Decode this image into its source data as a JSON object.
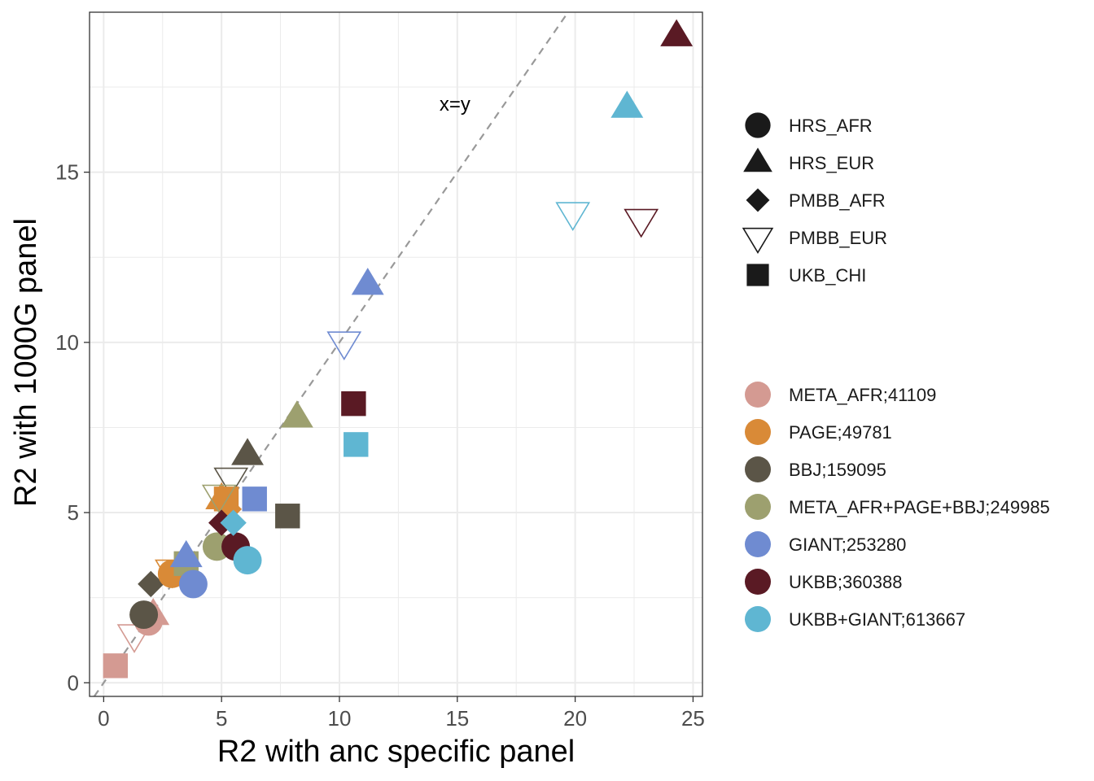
{
  "chart_data": {
    "type": "scatter",
    "title": "",
    "xlabel": "R2 with anc specific panel",
    "ylabel": "R2 with 1000G panel",
    "xlim": [
      -0.6,
      25.4
    ],
    "ylim": [
      -0.4,
      19.7
    ],
    "x_ticks": [
      0,
      5,
      10,
      15,
      20,
      25
    ],
    "y_ticks": [
      0,
      5,
      10,
      15
    ],
    "x_tick_labels": [
      "0",
      "5",
      "10",
      "15",
      "20",
      "25"
    ],
    "y_tick_labels": [
      "0",
      "5",
      "10",
      "15"
    ],
    "grid": true,
    "reference_line": {
      "label": "x=y",
      "label_x": 14.9,
      "label_y": 17.0,
      "style": "dashed",
      "color": "#999999"
    },
    "shape_legend": {
      "position": "right",
      "items": [
        {
          "label": "HRS_AFR",
          "shape": "circle"
        },
        {
          "label": "HRS_EUR",
          "shape": "triangle-up"
        },
        {
          "label": "PMBB_AFR",
          "shape": "diamond"
        },
        {
          "label": "PMBB_EUR",
          "shape": "triangle-down-open"
        },
        {
          "label": "UKB_CHI",
          "shape": "square"
        }
      ]
    },
    "color_legend": {
      "position": "right",
      "items": [
        {
          "label": "META_AFR;41109",
          "color": "#D49A92"
        },
        {
          "label": "PAGE;49781",
          "color": "#D98A37"
        },
        {
          "label": "BBJ;159095",
          "color": "#5B5547"
        },
        {
          "label": "META_AFR+PAGE+BBJ;249985",
          "color": "#9DA06F"
        },
        {
          "label": "GIANT;253280",
          "color": "#6F8BD1"
        },
        {
          "label": "UKBB;360388",
          "color": "#5A1A24"
        },
        {
          "label": "UKBB+GIANT;613667",
          "color": "#5FB6D2"
        }
      ]
    },
    "points": [
      {
        "group": "META_AFR;41109",
        "cohort": "UKB_CHI",
        "x": 0.5,
        "y": 0.5
      },
      {
        "group": "META_AFR;41109",
        "cohort": "PMBB_EUR",
        "x": 1.3,
        "y": 1.4
      },
      {
        "group": "META_AFR;41109",
        "cohort": "HRS_AFR",
        "x": 1.9,
        "y": 1.8
      },
      {
        "group": "META_AFR;41109",
        "cohort": "HRS_EUR",
        "x": 2.1,
        "y": 2.0
      },
      {
        "group": "BBJ;159095",
        "cohort": "HRS_AFR",
        "x": 1.7,
        "y": 2.0
      },
      {
        "group": "BBJ;159095",
        "cohort": "PMBB_AFR",
        "x": 2.0,
        "y": 2.9
      },
      {
        "group": "BBJ;159095",
        "cohort": "HRS_EUR",
        "x": 6.1,
        "y": 6.7
      },
      {
        "group": "BBJ;159095",
        "cohort": "PMBB_EUR",
        "x": 5.4,
        "y": 6.0
      },
      {
        "group": "BBJ;159095",
        "cohort": "UKB_CHI",
        "x": 7.8,
        "y": 4.9
      },
      {
        "group": "PAGE;49781",
        "cohort": "HRS_AFR",
        "x": 2.9,
        "y": 3.2
      },
      {
        "group": "PAGE;49781",
        "cohort": "PMBB_EUR",
        "x": 2.9,
        "y": 3.3
      },
      {
        "group": "PAGE;49781",
        "cohort": "UKB_CHI",
        "x": 5.2,
        "y": 5.4
      },
      {
        "group": "PAGE;49781",
        "cohort": "PMBB_AFR",
        "x": 5.3,
        "y": 5.1
      },
      {
        "group": "PAGE;49781",
        "cohort": "HRS_EUR",
        "x": 5.0,
        "y": 5.4
      },
      {
        "group": "META_AFR+PAGE+BBJ;249985",
        "cohort": "UKB_CHI",
        "x": 3.5,
        "y": 3.5
      },
      {
        "group": "META_AFR+PAGE+BBJ;249985",
        "cohort": "HRS_AFR",
        "x": 4.8,
        "y": 4.0
      },
      {
        "group": "META_AFR+PAGE+BBJ;249985",
        "cohort": "PMBB_EUR",
        "x": 4.9,
        "y": 5.5
      },
      {
        "group": "META_AFR+PAGE+BBJ;249985",
        "cohort": "HRS_EUR",
        "x": 8.2,
        "y": 7.8
      },
      {
        "group": "GIANT;253280",
        "cohort": "HRS_EUR",
        "x": 3.5,
        "y": 3.7
      },
      {
        "group": "GIANT;253280",
        "cohort": "HRS_AFR",
        "x": 3.8,
        "y": 2.9
      },
      {
        "group": "GIANT;253280",
        "cohort": "UKB_CHI",
        "x": 6.4,
        "y": 5.4
      },
      {
        "group": "GIANT;253280",
        "cohort": "PMBB_EUR",
        "x": 10.2,
        "y": 10.0
      },
      {
        "group": "GIANT;253280",
        "cohort": "HRS_EUR",
        "x": 11.2,
        "y": 11.7
      },
      {
        "group": "UKBB;360388",
        "cohort": "PMBB_AFR",
        "x": 5.0,
        "y": 4.7
      },
      {
        "group": "UKBB;360388",
        "cohort": "HRS_AFR",
        "x": 5.6,
        "y": 4.0
      },
      {
        "group": "UKBB;360388",
        "cohort": "UKB_CHI",
        "x": 10.6,
        "y": 8.2
      },
      {
        "group": "UKBB;360388",
        "cohort": "PMBB_EUR",
        "x": 22.8,
        "y": 13.6
      },
      {
        "group": "UKBB;360388",
        "cohort": "HRS_EUR",
        "x": 24.3,
        "y": 19.0
      },
      {
        "group": "UKBB+GIANT;613667",
        "cohort": "PMBB_AFR",
        "x": 5.5,
        "y": 4.7
      },
      {
        "group": "UKBB+GIANT;613667",
        "cohort": "HRS_AFR",
        "x": 6.1,
        "y": 3.6
      },
      {
        "group": "UKBB+GIANT;613667",
        "cohort": "UKB_CHI",
        "x": 10.7,
        "y": 7.0
      },
      {
        "group": "UKBB+GIANT;613667",
        "cohort": "PMBB_EUR",
        "x": 19.9,
        "y": 13.8
      },
      {
        "group": "UKBB+GIANT;613667",
        "cohort": "HRS_EUR",
        "x": 22.2,
        "y": 16.9
      }
    ]
  }
}
